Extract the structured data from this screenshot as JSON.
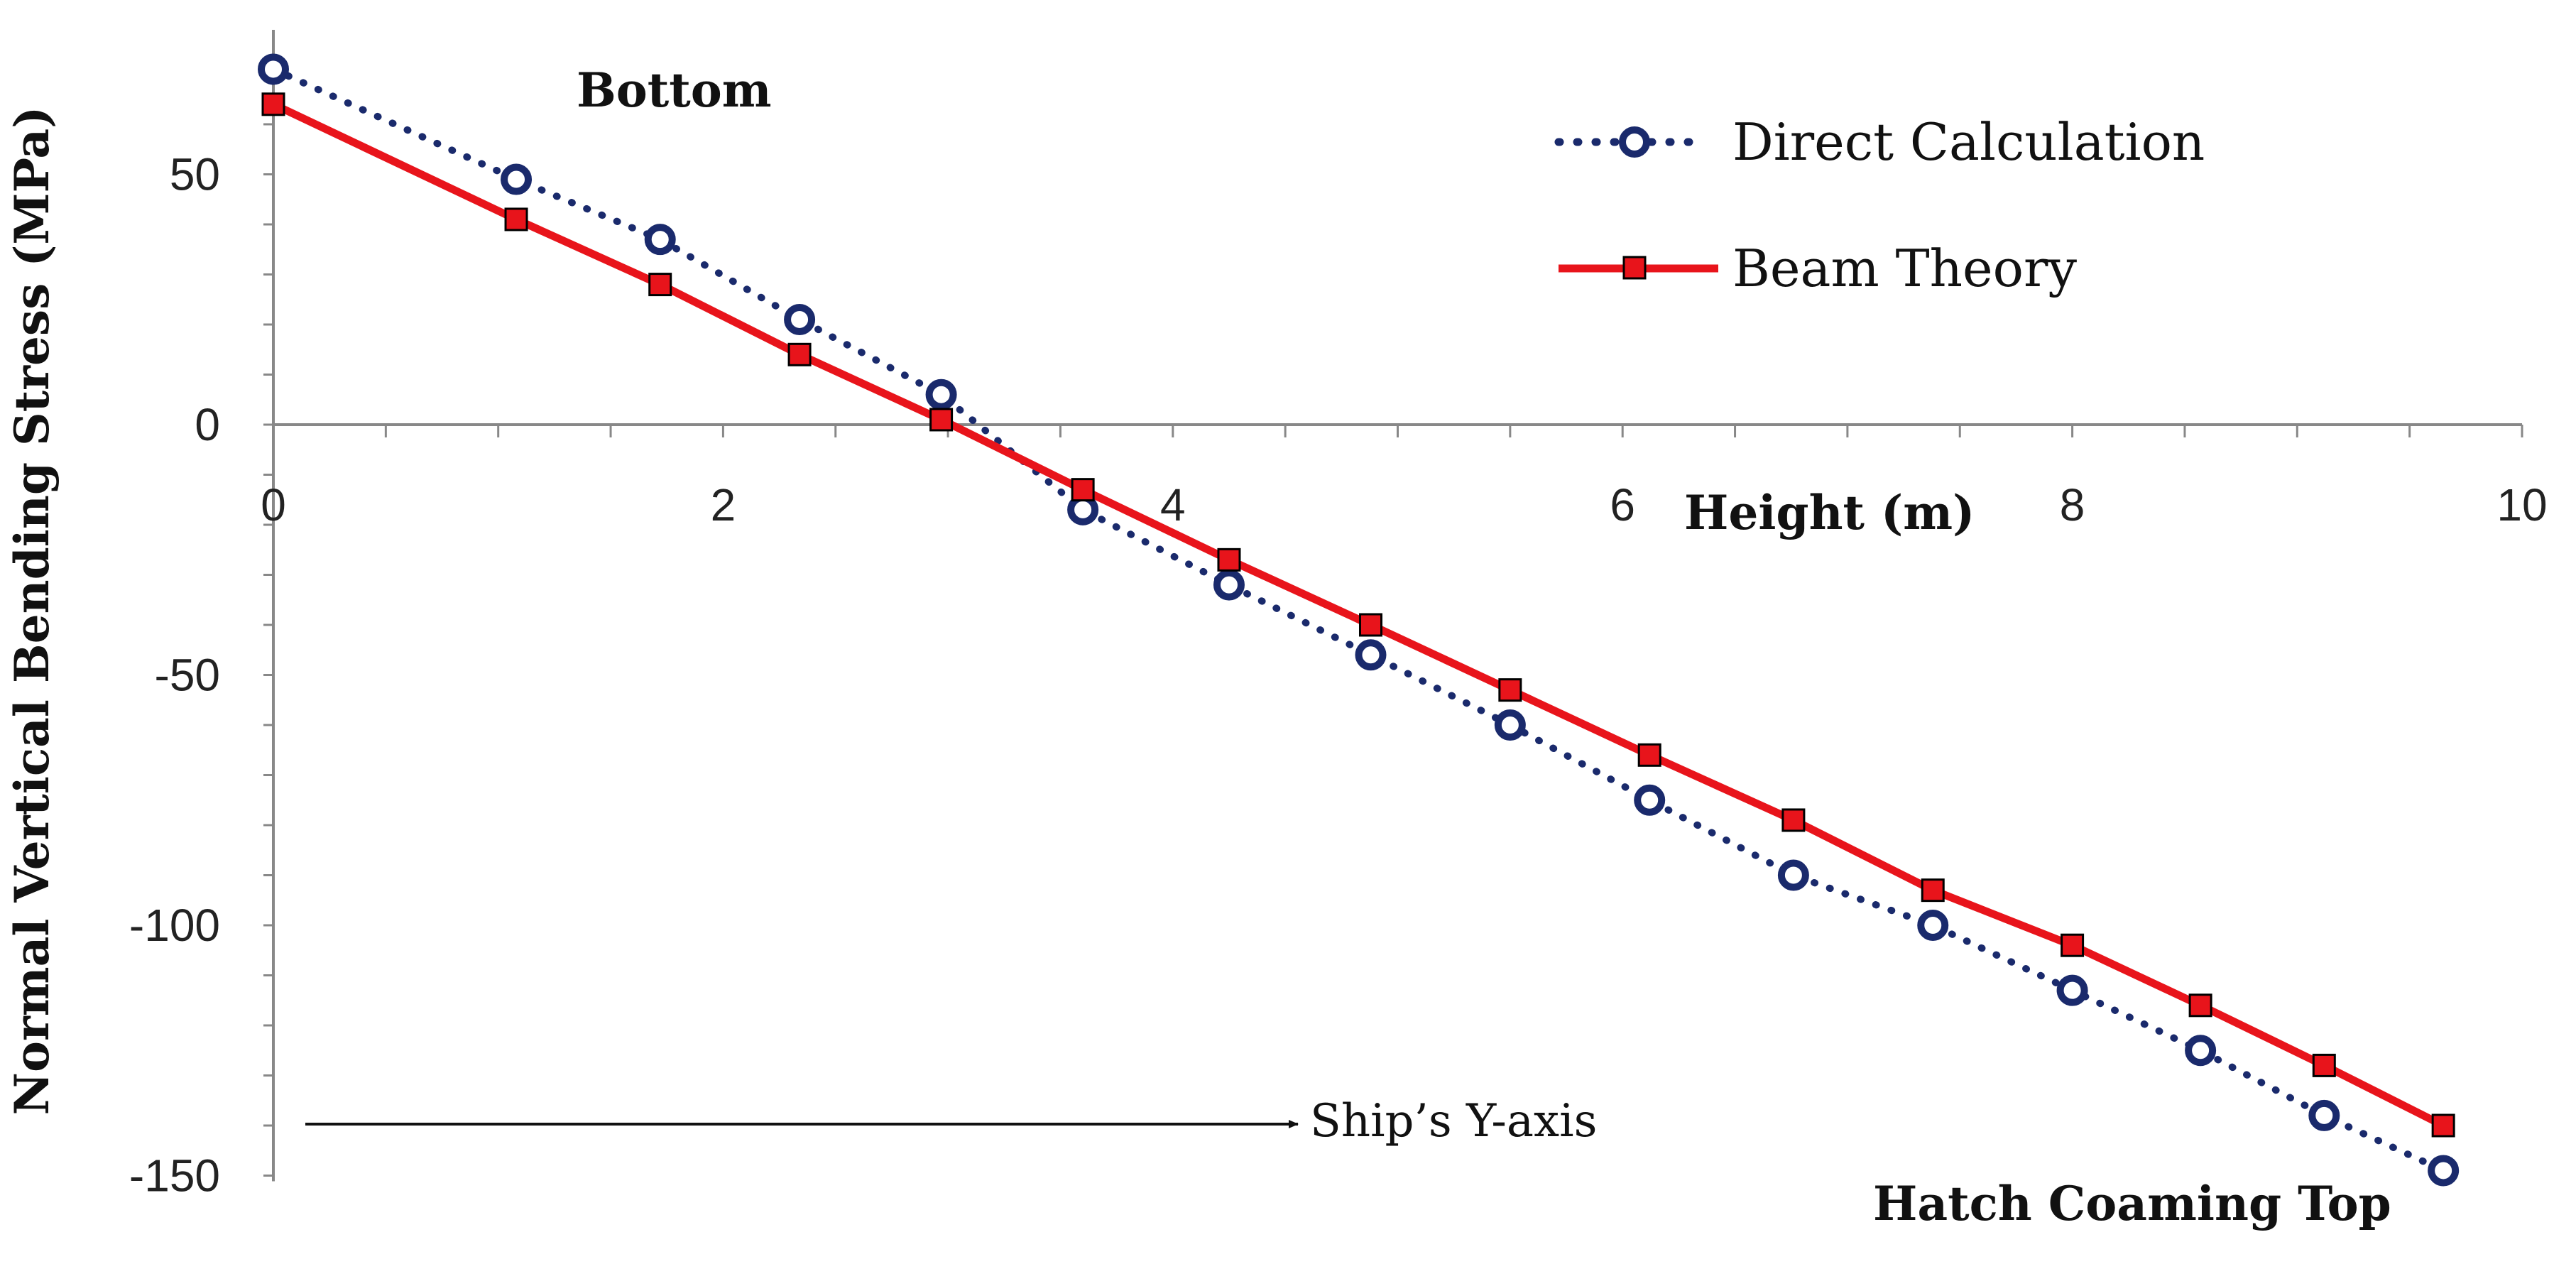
{
  "chart_data": {
    "type": "line",
    "xlabel": "Height (m)",
    "ylabel": "Normal Vertical Bending Stress (MPa)",
    "xlim": [
      0,
      10
    ],
    "ylim": [
      -150,
      80
    ],
    "xticks": [
      "0",
      "2",
      "4",
      "6",
      "8",
      "10"
    ],
    "yticks": [
      "50",
      "0",
      "-50",
      "-100",
      "-150"
    ],
    "grid": false,
    "legend_position": "top-right",
    "annotations": {
      "bottom": "Bottom",
      "top": "Hatch Coaming Top",
      "arrow": "Ship’s Y-axis"
    },
    "series": [
      {
        "name": "Direct Calculation",
        "color": "#1a2a6c",
        "style": "dotted",
        "marker": "circle",
        "x": [
          0,
          1.08,
          1.72,
          2.34,
          2.97,
          3.6,
          4.25,
          4.88,
          5.5,
          6.12,
          6.76,
          7.38,
          8.0,
          8.57,
          9.12,
          9.65
        ],
        "y": [
          71,
          49,
          37,
          21,
          6,
          -17,
          -32,
          -46,
          -60,
          -75,
          -90,
          -100,
          -113,
          -125,
          -138,
          -149
        ]
      },
      {
        "name": "Beam Theory",
        "color": "#e8141b",
        "style": "solid",
        "marker": "square",
        "x": [
          0,
          1.08,
          1.72,
          2.34,
          2.97,
          3.6,
          4.25,
          4.88,
          5.5,
          6.12,
          6.76,
          7.38,
          8.0,
          8.57,
          9.12,
          9.65
        ],
        "y": [
          64,
          41,
          28,
          14,
          1,
          -13,
          -27,
          -40,
          -53,
          -66,
          -79,
          -93,
          -104,
          -116,
          -128,
          -140
        ]
      }
    ]
  }
}
